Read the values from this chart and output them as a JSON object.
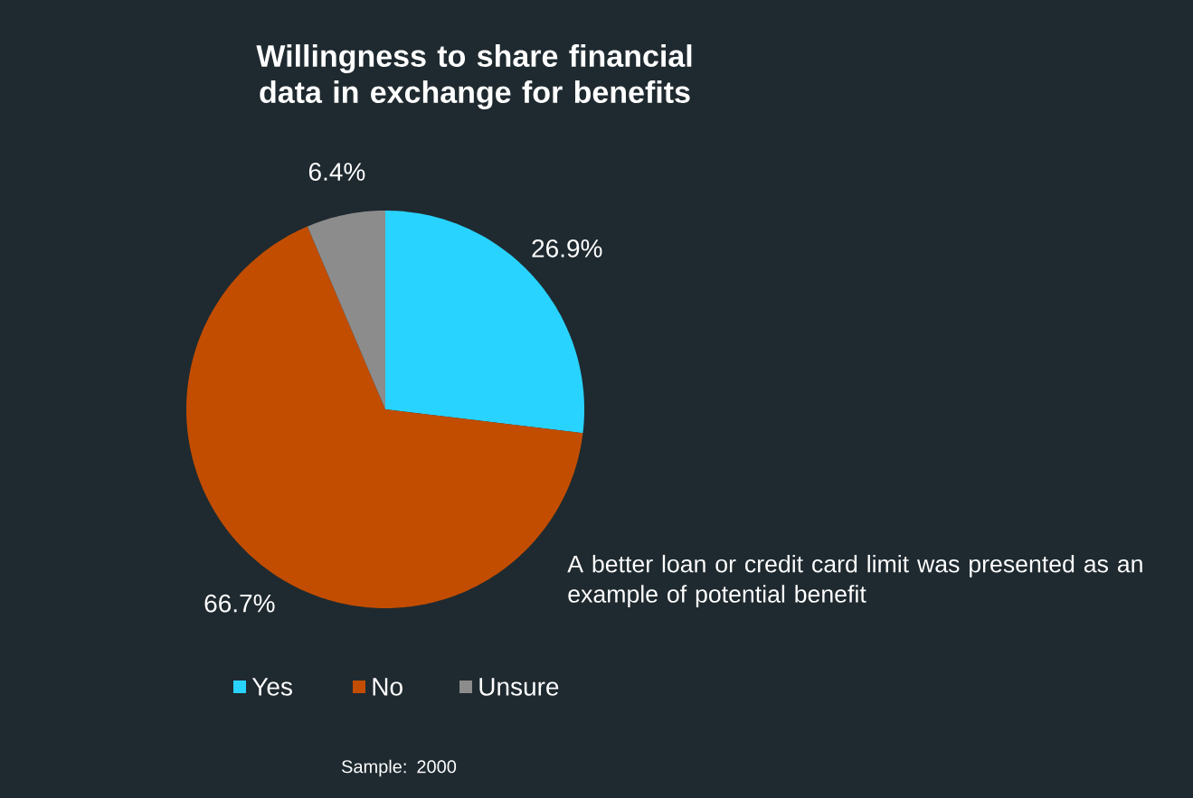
{
  "chart_data": {
    "type": "pie",
    "title": "Willingness to share financial data in exchange for benefits",
    "categories": [
      "Yes",
      "No",
      "Unsure"
    ],
    "values": [
      26.9,
      66.7,
      6.4
    ],
    "colors": [
      "#29d3ff",
      "#c24d00",
      "#8c8c8c"
    ],
    "value_labels": [
      "26.9%",
      "66.7%",
      "6.4%"
    ],
    "legend": "bottom",
    "annotations": [
      "A better loan or credit card limit was presented as an example of potential benefit",
      "Sample: 2000"
    ]
  }
}
